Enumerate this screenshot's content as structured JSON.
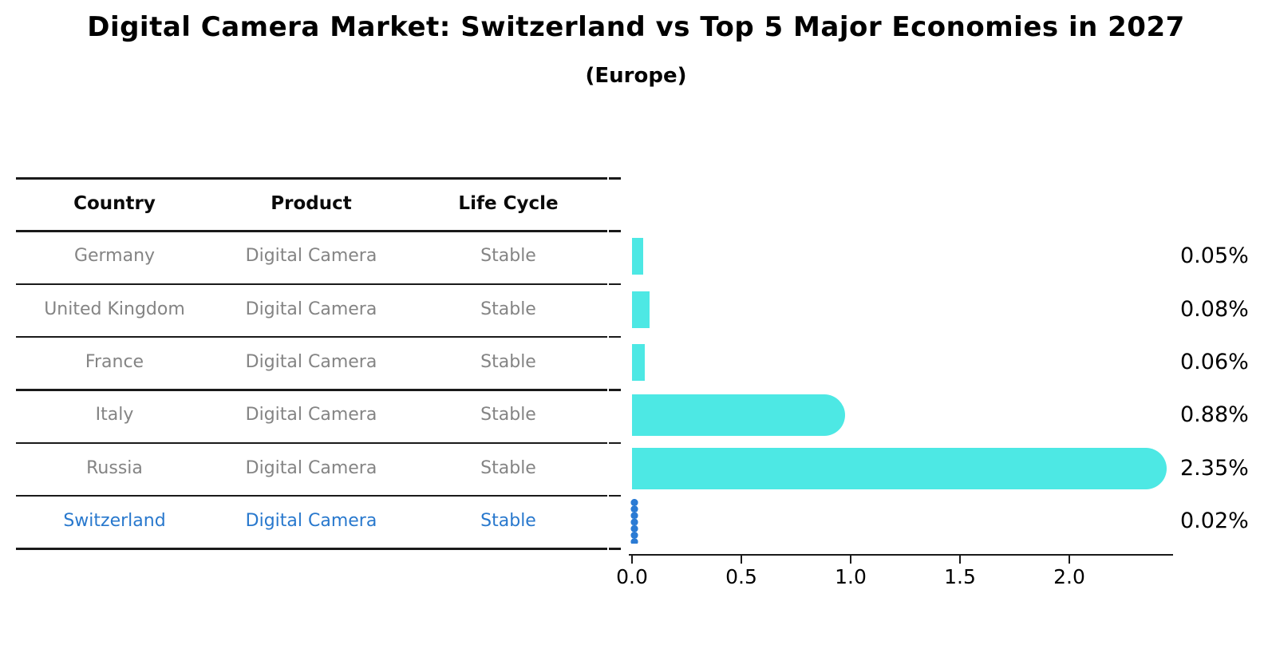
{
  "title": "Digital Camera Market: Switzerland vs Top 5 Major Economies in 2027",
  "subtitle": "(Europe)",
  "table": {
    "headers": [
      "Country",
      "Product",
      "Life Cycle"
    ],
    "rows": [
      {
        "country": "Germany",
        "product": "Digital Camera",
        "life_cycle": "Stable",
        "highlight": false
      },
      {
        "country": "United Kingdom",
        "product": "Digital Camera",
        "life_cycle": "Stable",
        "highlight": false
      },
      {
        "country": "France",
        "product": "Digital Camera",
        "life_cycle": "Stable",
        "highlight": false
      },
      {
        "country": "Italy",
        "product": "Digital Camera",
        "life_cycle": "Stable",
        "highlight": false
      },
      {
        "country": "Russia",
        "product": "Digital Camera",
        "life_cycle": "Stable",
        "highlight": false
      },
      {
        "country": "Switzerland",
        "product": "Digital Camera",
        "life_cycle": "Stable",
        "highlight": true
      }
    ]
  },
  "chart_data": {
    "type": "bar",
    "orientation": "horizontal",
    "title": "Digital Camera Market: Switzerland vs Top 5 Major Economies in 2027 (Europe)",
    "categories": [
      "Germany",
      "United Kingdom",
      "France",
      "Italy",
      "Russia",
      "Switzerland"
    ],
    "values": [
      0.05,
      0.08,
      0.06,
      0.88,
      2.35,
      0.02
    ],
    "value_labels": [
      "0.05%",
      "0.08%",
      "0.06%",
      "0.88%",
      "2.35%",
      "0.02%"
    ],
    "x_ticks": [
      "0.0",
      "0.5",
      "1.0",
      "1.5",
      "2.0"
    ],
    "x_tick_values": [
      0.0,
      0.5,
      1.0,
      1.5,
      2.0
    ],
    "xlim": [
      0,
      2.47
    ],
    "xlabel": "",
    "ylabel": "",
    "grid": false,
    "legend": "none",
    "bar_color": "#4de8e4",
    "highlight_bar_color": "#2b7bd4",
    "highlight_index": 5,
    "units": "percent"
  },
  "colors": {
    "text_black": "#000000",
    "table_text_gray": "#848484",
    "highlight_blue": "#2878cd",
    "line_black": "#1a1a1a",
    "background": "#ffffff"
  }
}
